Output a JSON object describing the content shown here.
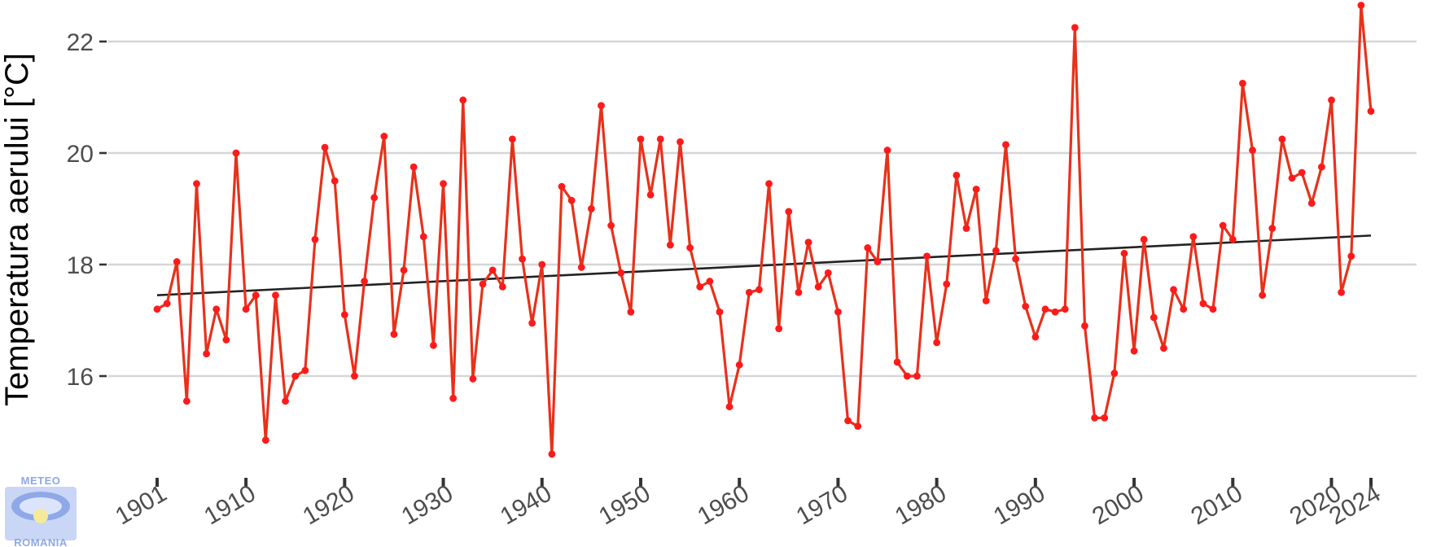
{
  "chart_data": {
    "type": "line",
    "title": "",
    "xlabel": "",
    "ylabel": "Temperatura aerului [°C]",
    "xlim": [
      1901,
      2024
    ],
    "ylim": [
      14.5,
      22.7
    ],
    "y_ticks": [
      16,
      18,
      20,
      22
    ],
    "x_ticks": [
      1901,
      1910,
      1920,
      1930,
      1940,
      1950,
      1960,
      1970,
      1980,
      1990,
      2000,
      2010,
      2020,
      2024
    ],
    "grid": "horizontal",
    "series": [
      {
        "color": "#e8311a",
        "x": [
          1901,
          1902,
          1903,
          1904,
          1905,
          1906,
          1907,
          1908,
          1909,
          1910,
          1911,
          1912,
          1913,
          1914,
          1915,
          1916,
          1917,
          1918,
          1919,
          1920,
          1921,
          1922,
          1923,
          1924,
          1925,
          1926,
          1927,
          1928,
          1929,
          1930,
          1931,
          1932,
          1933,
          1934,
          1935,
          1936,
          1937,
          1938,
          1939,
          1940,
          1941,
          1942,
          1943,
          1944,
          1945,
          1946,
          1947,
          1948,
          1949,
          1950,
          1951,
          1952,
          1953,
          1954,
          1955,
          1956,
          1957,
          1958,
          1959,
          1960,
          1961,
          1962,
          1963,
          1964,
          1965,
          1966,
          1967,
          1968,
          1969,
          1970,
          1971,
          1972,
          1973,
          1974,
          1975,
          1976,
          1977,
          1978,
          1979,
          1980,
          1981,
          1982,
          1983,
          1984,
          1985,
          1986,
          1987,
          1988,
          1989,
          1990,
          1991,
          1992,
          1993,
          1994,
          1995,
          1996,
          1997,
          1998,
          1999,
          2000,
          2001,
          2002,
          2003,
          2004,
          2005,
          2006,
          2007,
          2008,
          2009,
          2010,
          2011,
          2012,
          2013,
          2014,
          2015,
          2016,
          2017,
          2018,
          2019,
          2020,
          2021,
          2022,
          2023,
          2024
        ],
        "y": [
          17.2,
          17.3,
          18.05,
          15.55,
          19.45,
          16.4,
          17.2,
          16.65,
          20.0,
          17.2,
          17.45,
          14.85,
          17.45,
          15.55,
          16.0,
          16.1,
          18.45,
          20.1,
          19.5,
          17.1,
          16.0,
          17.7,
          19.2,
          20.3,
          16.75,
          17.9,
          19.75,
          18.5,
          16.55,
          19.45,
          15.6,
          20.95,
          15.95,
          17.65,
          17.9,
          17.6,
          20.25,
          18.1,
          16.95,
          18.0,
          14.6,
          19.4,
          19.15,
          17.95,
          19.0,
          20.85,
          18.7,
          17.85,
          17.15,
          20.25,
          19.25,
          20.25,
          18.35,
          20.2,
          18.3,
          17.6,
          17.7,
          17.15,
          15.45,
          16.2,
          17.5,
          17.55,
          19.45,
          16.85,
          18.95,
          17.5,
          18.4,
          17.6,
          17.85,
          17.15,
          15.2,
          15.1,
          18.3,
          18.05,
          20.05,
          16.25,
          16.0,
          16.0,
          18.15,
          16.6,
          17.65,
          19.6,
          18.65,
          19.35,
          17.35,
          18.25,
          20.15,
          18.1,
          17.25,
          16.7,
          17.2,
          17.15,
          17.2,
          22.25,
          16.9,
          15.25,
          15.25,
          16.05,
          18.2,
          16.45,
          18.45,
          17.05,
          16.5,
          17.55,
          17.2,
          18.5,
          17.3,
          17.2,
          18.7,
          18.45,
          21.25,
          20.05,
          17.45,
          18.65,
          20.25,
          19.55,
          19.65,
          19.1,
          19.75,
          20.95,
          17.5,
          18.15,
          22.65,
          20.75
        ]
      }
    ],
    "trend": {
      "color": "#222222",
      "x": [
        1901,
        2024
      ],
      "y": [
        17.45,
        18.52
      ]
    }
  },
  "logo": {
    "top_text": "METEO",
    "bottom_text": "ROMANIA"
  }
}
